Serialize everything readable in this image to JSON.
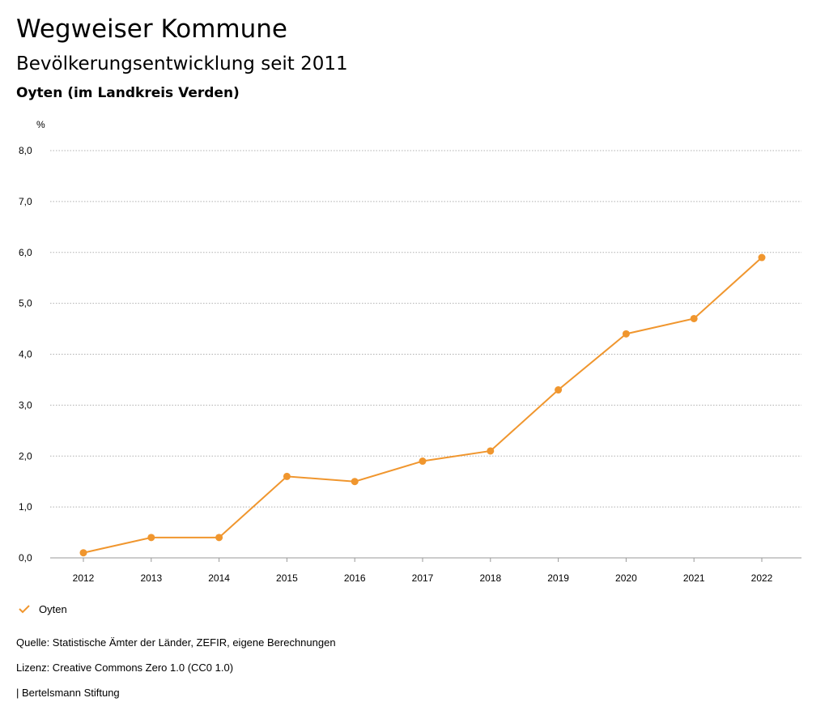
{
  "header": {
    "title": "Wegweiser Kommune",
    "subtitle": "Bevölkerungsentwicklung seit 2011",
    "region": "Oyten (im Landkreis Verden)"
  },
  "chart_data": {
    "type": "line",
    "ylabel": "%",
    "xlabel": "",
    "x": [
      "2012",
      "2013",
      "2014",
      "2015",
      "2016",
      "2017",
      "2018",
      "2019",
      "2020",
      "2021",
      "2022"
    ],
    "y_ticks": [
      "0,0",
      "1,0",
      "2,0",
      "3,0",
      "4,0",
      "5,0",
      "6,0",
      "7,0",
      "8,0"
    ],
    "ylim": [
      0,
      8
    ],
    "grid": true,
    "legend_position": "bottom-left",
    "series": [
      {
        "name": "Oyten",
        "color": "#f0962e",
        "values": [
          0.1,
          0.4,
          0.4,
          1.6,
          1.5,
          1.9,
          2.1,
          3.3,
          4.4,
          4.7,
          5.9
        ]
      }
    ]
  },
  "footer": {
    "source": "Quelle: Statistische Ämter der Länder, ZEFIR, eigene Berechnungen",
    "license": "Lizenz: Creative Commons Zero 1.0 (CC0 1.0)",
    "organization": "| Bertelsmann Stiftung"
  }
}
